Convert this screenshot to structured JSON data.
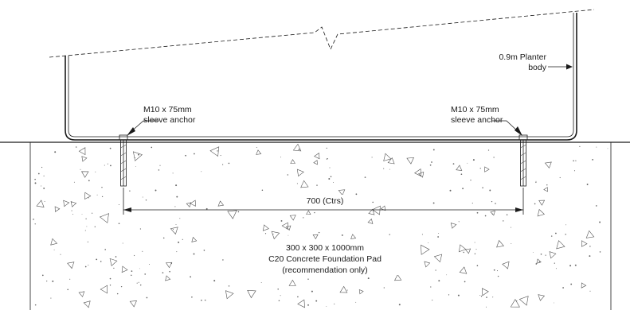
{
  "labels": {
    "anchor_left_line1": "M10 x 75mm",
    "anchor_left_line2": "sleeve anchor",
    "anchor_right_line1": "M10 x 75mm",
    "anchor_right_line2": "sleeve anchor",
    "planter_line1": "0.9m Planter",
    "planter_line2": "body",
    "dimension": "700 (Ctrs)",
    "pad_line1": "300 x 300 x 1000mm",
    "pad_line2": "C20 Concrete Foundation Pad",
    "pad_line3": "(recommendation only)"
  },
  "colors": {
    "line": "#1a1a1a",
    "background": "#ffffff"
  }
}
